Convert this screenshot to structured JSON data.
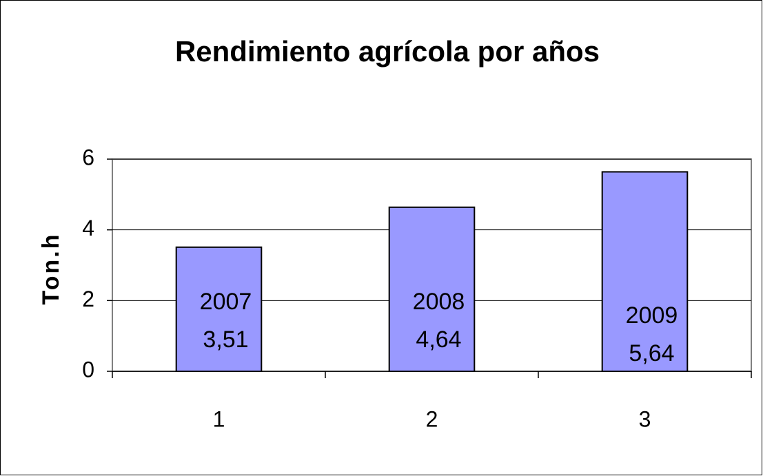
{
  "chart_data": {
    "type": "bar",
    "title": "Rendimiento agrícola por años",
    "y_label": "Ton.h",
    "categories": [
      "1",
      "2",
      "3"
    ],
    "values": [
      3.51,
      4.64,
      5.64
    ],
    "value_labels": [
      "3,51",
      "4,64",
      "5,64"
    ],
    "bar_labels": [
      "2007",
      "2008",
      "2009"
    ],
    "color": "#9999ff",
    "ylim": [
      0,
      6
    ],
    "yticks": [
      0,
      2,
      4,
      6
    ],
    "grid": true
  }
}
